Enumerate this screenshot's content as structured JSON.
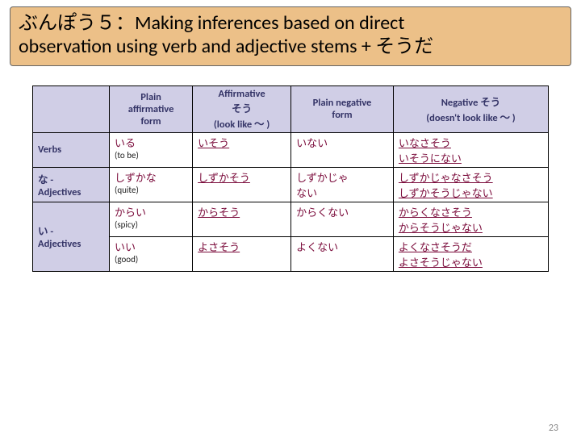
{
  "title": {
    "line1": "ぶんぽう５：Making inferences based on direct",
    "line2": "observation using verb and adjective stems + そうだ"
  },
  "table": {
    "headers": {
      "h0": "",
      "h1": "Plain\naffirmative\nform",
      "h2": "Affirmative\nそう\n(look like ～ )",
      "h3": "Plain negative\nform",
      "h4": "Negative そう\n(doesn't look like ～ )"
    },
    "rows": {
      "r0": {
        "label": "Verbs",
        "c1_jp": "いる",
        "c1_en": "(to be)",
        "c2_jp": "いそう",
        "c3_jp": "いない",
        "c4_jp1": "いなさそう",
        "c4_jp2": "いそうにない"
      },
      "r1": {
        "label": "な -\nAdjectives",
        "c1_jp": "しずかな",
        "c1_en": "(quite)",
        "c2_jp": "しずかそう",
        "c3_jp1": "しずかじゃ",
        "c3_jp2": "ない",
        "c4_jp1": "しずかじゃなさそう",
        "c4_jp2": "しずかそうじゃない"
      },
      "r2": {
        "label": "い -\nAdjectives",
        "c1_jp": "からい",
        "c1_en": "(spicy)",
        "c2_jp": "からそう",
        "c3_jp": "からくない",
        "c4_jp1": "からくなさそう",
        "c4_jp2": "からそうじゃない"
      },
      "r3": {
        "c1_jp": "いい",
        "c1_en": "(good)",
        "c2_jp": "よさそう",
        "c3_jp": "よくない",
        "c4_jp1": "よくなさそうだ",
        "c4_jp2": "よさそうじゃない"
      }
    }
  },
  "pageNumber": "23",
  "colors": {
    "title_bg": "#ecc088",
    "th_bg": "#d0cee6",
    "th_fg": "#333366",
    "jp_color": "#7a0a3a"
  }
}
